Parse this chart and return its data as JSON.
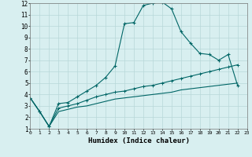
{
  "title": "",
  "xlabel": "Humidex (Indice chaleur)",
  "bg_color": "#d8eff0",
  "grid_color": "#b8d8d8",
  "line_color": "#006666",
  "xlim": [
    0,
    23
  ],
  "ylim": [
    1,
    12
  ],
  "xticks": [
    0,
    1,
    2,
    3,
    4,
    5,
    6,
    7,
    8,
    9,
    10,
    11,
    12,
    13,
    14,
    15,
    16,
    17,
    18,
    19,
    20,
    21,
    22,
    23
  ],
  "yticks": [
    1,
    2,
    3,
    4,
    5,
    6,
    7,
    8,
    9,
    10,
    11,
    12
  ],
  "line1_x": [
    0,
    1,
    2,
    3,
    4,
    5,
    6,
    7,
    8,
    9,
    10,
    11,
    12,
    13,
    14,
    15,
    16,
    17,
    18,
    19,
    20,
    21,
    22
  ],
  "line1_y": [
    3.7,
    2.5,
    1.2,
    3.2,
    3.3,
    3.8,
    4.3,
    4.8,
    5.5,
    6.5,
    10.2,
    10.3,
    11.8,
    12.0,
    12.1,
    11.5,
    9.5,
    8.5,
    7.6,
    7.5,
    7.0,
    7.5,
    4.8
  ],
  "line2_x": [
    0,
    1,
    2,
    3,
    4,
    5,
    6,
    7,
    8,
    9,
    10,
    11,
    12,
    13,
    14,
    15,
    16,
    17,
    18,
    19,
    20,
    21,
    22
  ],
  "line2_y": [
    3.7,
    2.5,
    1.2,
    2.8,
    3.0,
    3.2,
    3.5,
    3.8,
    4.0,
    4.2,
    4.3,
    4.5,
    4.7,
    4.8,
    5.0,
    5.2,
    5.4,
    5.6,
    5.8,
    6.0,
    6.2,
    6.4,
    6.6
  ],
  "line3_x": [
    0,
    1,
    2,
    3,
    4,
    5,
    6,
    7,
    8,
    9,
    10,
    11,
    12,
    13,
    14,
    15,
    16,
    17,
    18,
    19,
    20,
    21,
    22
  ],
  "line3_y": [
    3.7,
    2.5,
    1.2,
    2.5,
    2.7,
    2.9,
    3.0,
    3.2,
    3.4,
    3.6,
    3.7,
    3.8,
    3.9,
    4.0,
    4.1,
    4.2,
    4.4,
    4.5,
    4.6,
    4.7,
    4.8,
    4.9,
    5.0
  ]
}
